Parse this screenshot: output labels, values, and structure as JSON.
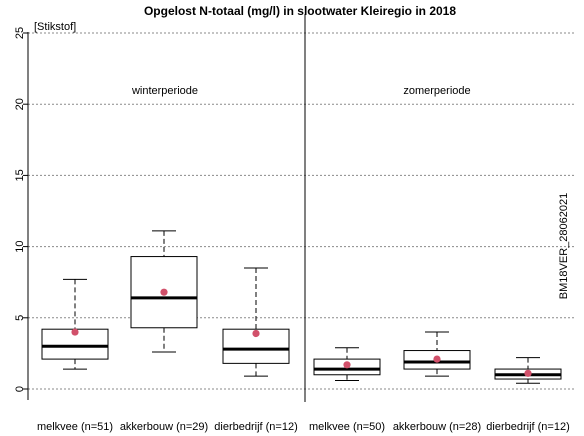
{
  "chart_data": {
    "type": "boxplot",
    "title": "Opgelost N-totaal (mg/l) in slootwater Kleiregio in 2018",
    "unit_label": "[Stikstof]",
    "ylim": [
      0,
      25
    ],
    "yticks": [
      0,
      5,
      10,
      15,
      20,
      25
    ],
    "grid": "horizontal dotted",
    "period_labels": [
      "winterperiode",
      "zomerperiode"
    ],
    "watermark": "BM18VER_28062021",
    "mean_color": "#d1506a",
    "categories": [
      "melkvee (n=51)",
      "akkerbouw (n=29)",
      "dierbedrijf (n=12)",
      "melkvee (n=50)",
      "akkerbouw (n=28)",
      "dierbedrijf (n=12)"
    ],
    "boxes": [
      {
        "period": "winterperiode",
        "whisker_low": 1.4,
        "q1": 2.1,
        "median": 3.0,
        "q3": 4.2,
        "whisker_high": 7.7,
        "mean": 4.0
      },
      {
        "period": "winterperiode",
        "whisker_low": 2.6,
        "q1": 4.3,
        "median": 6.4,
        "q3": 9.3,
        "whisker_high": 11.1,
        "mean": 6.8
      },
      {
        "period": "winterperiode",
        "whisker_low": 0.9,
        "q1": 1.8,
        "median": 2.8,
        "q3": 4.2,
        "whisker_high": 8.5,
        "mean": 3.9
      },
      {
        "period": "zomerperiode",
        "whisker_low": 0.6,
        "q1": 1.0,
        "median": 1.4,
        "q3": 2.1,
        "whisker_high": 2.9,
        "mean": 1.7
      },
      {
        "period": "zomerperiode",
        "whisker_low": 0.9,
        "q1": 1.4,
        "median": 1.9,
        "q3": 2.7,
        "whisker_high": 4.0,
        "mean": 2.1
      },
      {
        "period": "zomerperiode",
        "whisker_low": 0.4,
        "q1": 0.7,
        "median": 1.0,
        "q3": 1.4,
        "whisker_high": 2.2,
        "mean": 1.1
      }
    ]
  }
}
